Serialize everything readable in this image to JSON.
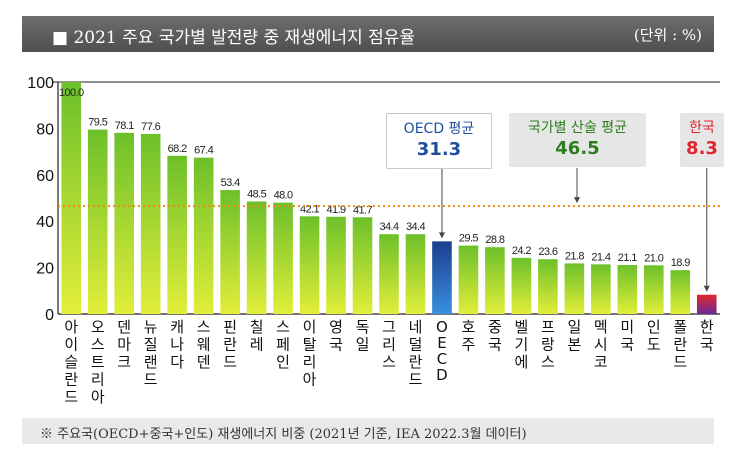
{
  "header": {
    "title": "2021 주요 국가별 발전량 중 재생에너지 점유율",
    "unit": "(단위 : %)"
  },
  "footer": {
    "note": "※ 주요국(OECD+중국+인도) 재생에너지 비중 (2021년 기준, IEA 2022.3월 데이터)"
  },
  "callouts": {
    "oecd": {
      "label": "OECD 평균",
      "value": "31.3",
      "color": "#1f4e9c"
    },
    "average": {
      "label": "국가별 산술 평균",
      "value": "46.5",
      "color": "#2e7d1e"
    },
    "korea": {
      "label": "한국",
      "value": "8.3",
      "color": "#e0262e"
    }
  },
  "chart_data": {
    "type": "bar",
    "categories": [
      "아이슬란드",
      "오스트리아",
      "덴마크",
      "뉴질랜드",
      "캐나다",
      "스웨덴",
      "핀란드",
      "칠레",
      "스페인",
      "이탈리아",
      "영국",
      "독일",
      "그리스",
      "네덜란드",
      "OECD",
      "호주",
      "중국",
      "벨기에",
      "프랑스",
      "일본",
      "멕시코",
      "미국",
      "인도",
      "폴란드",
      "한국"
    ],
    "values": [
      100.0,
      79.5,
      78.1,
      77.6,
      68.2,
      67.4,
      53.4,
      48.5,
      48.0,
      42.1,
      41.9,
      41.7,
      34.4,
      34.4,
      31.3,
      29.5,
      28.8,
      24.2,
      23.6,
      21.8,
      21.4,
      21.1,
      21.0,
      18.9,
      8.3
    ],
    "value_labels": [
      "100.0",
      "79.5",
      "78.1",
      "77.6",
      "68.2",
      "67.4",
      "53.4",
      "48.5",
      "48.0",
      "42.1",
      "41.9",
      "41.7",
      "34.4",
      "34.4",
      "",
      "29.5",
      "28.8",
      "24.2",
      "23.6",
      "21.8",
      "21.4",
      "21.1",
      "21.0",
      "18.9",
      ""
    ],
    "ylim": [
      0,
      100
    ],
    "yticks": [
      0,
      20,
      40,
      60,
      80,
      100
    ],
    "average_line": 46.5,
    "highlight": {
      "OECD": "#1f4e9c",
      "한국": "#e0262e"
    },
    "bar_color": "#6cc02a",
    "average_line_color": "#f08a1c"
  }
}
